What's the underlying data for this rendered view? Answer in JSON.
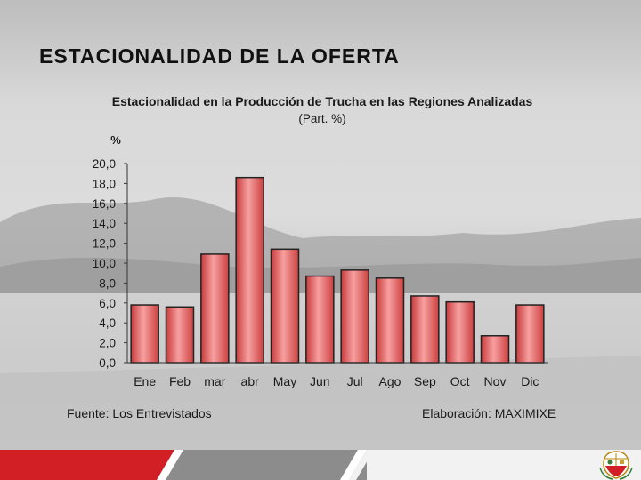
{
  "slide": {
    "title": "ESTACIONALIDAD DE LA OFERTA"
  },
  "chart_data": {
    "type": "bar",
    "title": "Estacionalidad en la Producción de Trucha en las Regiones Analizadas",
    "subtitle": "(Part. %)",
    "ylabel": "%",
    "xlabel": "",
    "ylim": [
      0,
      20
    ],
    "ytick_step": 2,
    "ytick_labels": [
      "0,0",
      "2,0",
      "4,0",
      "6,0",
      "8,0",
      "10,0",
      "12,0",
      "14,0",
      "16,0",
      "18,0",
      "20,0"
    ],
    "categories": [
      "Ene",
      "Feb",
      "mar",
      "abr",
      "May",
      "Jun",
      "Jul",
      "Ago",
      "Sep",
      "Oct",
      "Nov",
      "Dic"
    ],
    "values": [
      5.8,
      5.6,
      10.9,
      18.6,
      11.4,
      8.7,
      9.3,
      8.5,
      6.7,
      6.1,
      2.7,
      5.8
    ],
    "legend": "none",
    "bar_color": "#f06a6a"
  },
  "footer": {
    "source": "Fuente: Los Entrevistados",
    "credit": "Elaboración: MAXIMIXE"
  },
  "colors": {
    "accent_red": "#d21f26",
    "band_gray": "#8c8c8c"
  }
}
